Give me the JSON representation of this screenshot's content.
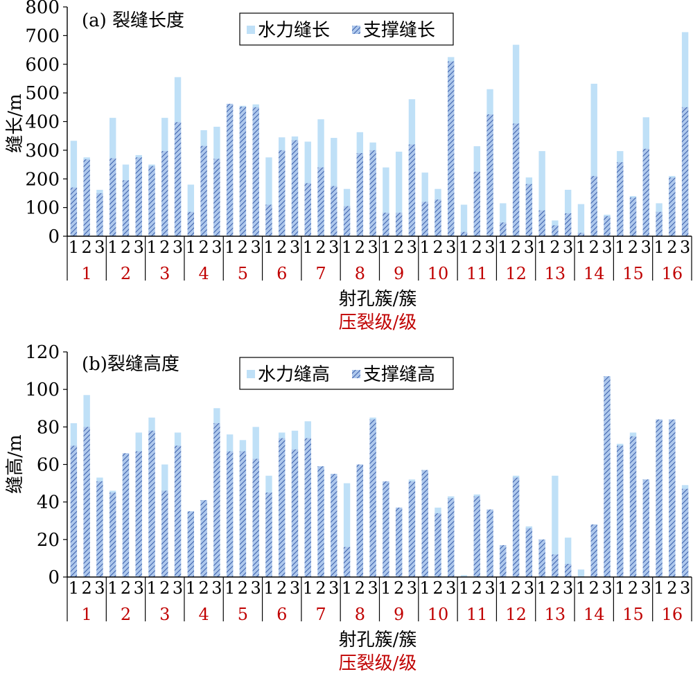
{
  "colors": {
    "hydraulic_fill": "#bfe0f7",
    "propped_fill": "#aec8ec",
    "propped_hatch": "#3a5eaa",
    "stage_label": "#c00000",
    "axis": "#000000"
  },
  "chart_data": [
    {
      "type": "bar",
      "title": "(a) 裂缝长度",
      "ylabel": "缝长/m",
      "xlabel": "射孔簇/簇",
      "xlabel2": "压裂级/级",
      "ylim": [
        0,
        800
      ],
      "yticks": [
        "0",
        "100",
        "200",
        "300",
        "400",
        "500",
        "600",
        "700",
        "800"
      ],
      "legend_position": "top-center",
      "cluster_labels": [
        "1",
        "2",
        "3"
      ],
      "stages": [
        "1",
        "2",
        "3",
        "4",
        "5",
        "6",
        "7",
        "8",
        "9",
        "10",
        "11",
        "12",
        "13",
        "14",
        "15",
        "16"
      ],
      "series": [
        {
          "name": "水力缝长",
          "values": [
            333,
            275,
            162,
            413,
            250,
            283,
            250,
            413,
            555,
            180,
            370,
            382,
            180,
            455,
            460,
            275,
            345,
            348,
            330,
            408,
            343,
            165,
            363,
            327,
            240,
            295,
            478,
            222,
            165,
            625,
            110,
            314,
            513,
            115,
            668,
            205,
            297,
            55,
            162,
            112,
            532,
            75,
            297,
            140,
            415,
            115,
            210,
            712
          ]
        },
        {
          "name": "支撑缝长",
          "values": [
            170,
            268,
            150,
            272,
            195,
            275,
            245,
            297,
            398,
            85,
            315,
            270,
            462,
            452,
            450,
            110,
            300,
            335,
            185,
            240,
            175,
            105,
            290,
            300,
            82,
            82,
            320,
            120,
            128,
            610,
            15,
            225,
            425,
            48,
            393,
            182,
            90,
            38,
            80,
            12,
            210,
            70,
            258,
            135,
            305,
            85,
            205,
            450
          ]
        }
      ]
    },
    {
      "type": "bar",
      "title": "(b)裂缝高度",
      "ylabel": "缝高/m",
      "xlabel": "射孔簇/簇",
      "xlabel2": "压裂级/级",
      "ylim": [
        0,
        120
      ],
      "yticks": [
        "0",
        "20",
        "40",
        "60",
        "80",
        "100",
        "120"
      ],
      "legend_position": "top-center",
      "cluster_labels": [
        "1",
        "2",
        "3"
      ],
      "stages": [
        "1",
        "2",
        "3",
        "4",
        "5",
        "6",
        "7",
        "8",
        "9",
        "10",
        "11",
        "12",
        "13",
        "14",
        "15",
        "16"
      ],
      "series": [
        {
          "name": "水力缝高",
          "values": [
            82,
            97,
            53,
            46,
            65,
            77,
            85,
            60,
            77,
            35,
            41,
            90,
            76,
            73,
            80,
            54,
            77,
            78,
            83,
            59,
            55,
            50,
            60,
            85,
            51,
            37,
            52,
            57,
            37,
            43,
            1,
            44,
            36,
            17,
            54,
            27,
            20,
            54,
            21,
            4,
            28,
            107,
            71,
            77,
            52,
            84,
            84,
            49
          ]
        },
        {
          "name": "支撑缝高",
          "values": [
            70,
            80,
            51,
            45,
            66,
            67,
            78,
            46,
            70,
            35,
            41,
            82,
            67,
            67,
            63,
            45,
            74,
            68,
            74,
            59,
            55,
            16,
            60,
            84,
            51,
            37,
            51,
            57,
            34,
            42,
            0,
            43,
            36,
            17,
            53,
            26,
            20,
            12,
            7,
            0,
            28,
            107,
            70,
            75,
            52,
            84,
            84,
            47
          ]
        }
      ]
    }
  ]
}
